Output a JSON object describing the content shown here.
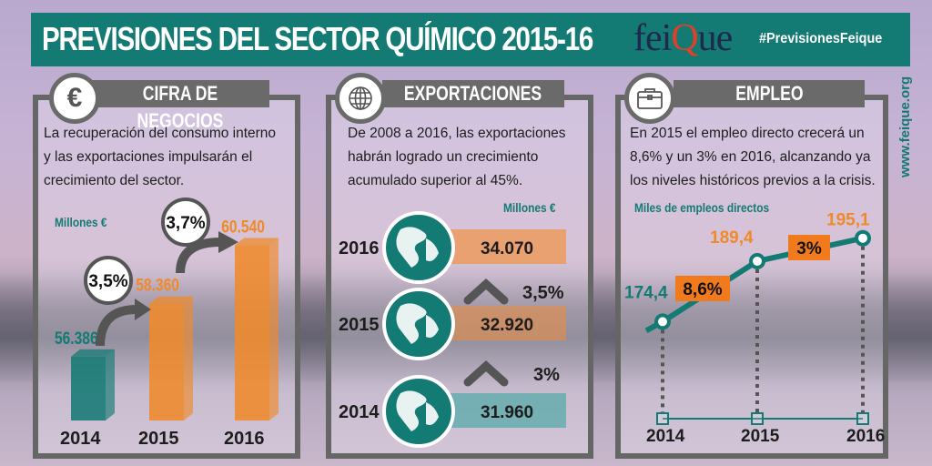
{
  "header": {
    "title": "PREVISIONES DEL SECTOR QUÍMICO 2015-16",
    "logo_text_a": "fei",
    "logo_text_q": "Q",
    "logo_text_b": "ue",
    "hashtag": "#PrevisionesFeique"
  },
  "website": "www.feique.org",
  "colors": {
    "teal": "#147a74",
    "orange": "#ef8a2a",
    "gray": "#666666"
  },
  "panels": [
    {
      "title": "CIFRA DE NEGOCIOS",
      "icon": "euro-icon",
      "icon_glyph": "€",
      "text": "La recuperación del consumo interno y las exportaciones impulsarán el crecimiento del sector."
    },
    {
      "title": "EXPORTACIONES",
      "icon": "globe-icon",
      "text": "De 2008 a 2016, las exportaciones habrán logrado un crecimiento acumulado superior al 45%."
    },
    {
      "title": "EMPLEO",
      "icon": "briefcase-icon",
      "text": "En 2015 el empleo directo crecerá un 8,6% y un 3% en 2016, alcanzando ya los niveles históricos previos a la crisis."
    }
  ],
  "chart_data": [
    {
      "type": "bar",
      "title": "CIFRA DE NEGOCIOS",
      "ylabel": "Millones €",
      "categories": [
        "2014",
        "2015",
        "2016"
      ],
      "values": [
        56386,
        58360,
        60540
      ],
      "value_labels": [
        "56.386",
        "58.360",
        "60.540"
      ],
      "growth_labels": [
        "3,5%",
        "3,7%"
      ]
    },
    {
      "type": "bar",
      "title": "EXPORTACIONES",
      "ylabel": "Millones €",
      "categories": [
        "2016",
        "2015",
        "2014"
      ],
      "values": [
        34070,
        32920,
        31960
      ],
      "value_labels": [
        "34.070",
        "32.920",
        "31.960"
      ],
      "growth_labels": [
        "3,5%",
        "3%"
      ]
    },
    {
      "type": "line",
      "title": "EMPLEO",
      "ylabel": "Miles de empleos directos",
      "x": [
        "2014",
        "2015",
        "2016"
      ],
      "values": [
        174.4,
        189.4,
        195.1
      ],
      "value_labels": [
        "174,4",
        "189,4",
        "195,1"
      ],
      "growth_labels": [
        "8,6%",
        "3%"
      ]
    }
  ]
}
